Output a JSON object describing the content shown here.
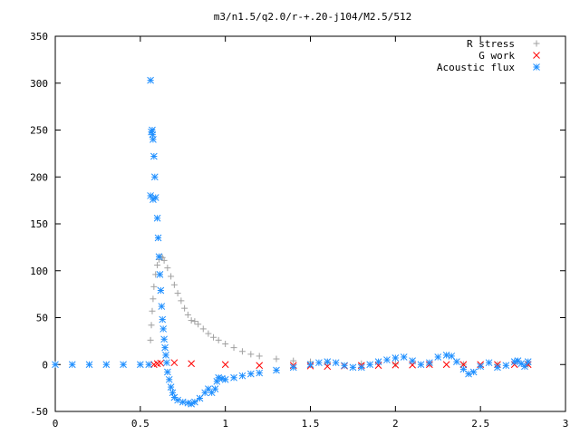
{
  "chart_data": {
    "type": "scatter",
    "title": "m3/n1.5/q2.0/r-+.20-j104/M2.5/512",
    "xlabel": "",
    "ylabel": "",
    "xlim": [
      0,
      3
    ],
    "ylim": [
      -50,
      350
    ],
    "xticks": [
      "0",
      "0.5",
      "1",
      "1.5",
      "2",
      "2.5",
      "3"
    ],
    "yticks": [
      "-50",
      "0",
      "50",
      "100",
      "150",
      "200",
      "250",
      "300",
      "350"
    ],
    "grid": false,
    "legend_position": "top-right",
    "series": [
      {
        "name": "R stress",
        "marker": "plus",
        "color": "#a0a0a0",
        "points": [
          [
            0.56,
            26
          ],
          [
            0.565,
            42
          ],
          [
            0.57,
            57
          ],
          [
            0.575,
            70
          ],
          [
            0.58,
            83
          ],
          [
            0.59,
            96
          ],
          [
            0.6,
            106
          ],
          [
            0.61,
            112
          ],
          [
            0.62,
            115
          ],
          [
            0.63,
            114
          ],
          [
            0.64,
            111
          ],
          [
            0.66,
            103
          ],
          [
            0.68,
            94
          ],
          [
            0.7,
            85
          ],
          [
            0.72,
            76
          ],
          [
            0.74,
            68
          ],
          [
            0.76,
            60
          ],
          [
            0.78,
            53
          ],
          [
            0.8,
            47
          ],
          [
            0.82,
            46
          ],
          [
            0.84,
            43
          ],
          [
            0.87,
            38
          ],
          [
            0.9,
            33
          ],
          [
            0.93,
            29
          ],
          [
            0.96,
            26
          ],
          [
            1.0,
            22
          ],
          [
            1.05,
            18
          ],
          [
            1.1,
            14
          ],
          [
            1.15,
            11
          ],
          [
            1.2,
            9
          ],
          [
            1.3,
            6
          ],
          [
            1.4,
            4
          ],
          [
            1.5,
            3
          ],
          [
            1.6,
            2
          ],
          [
            1.8,
            1
          ],
          [
            2.0,
            0.5
          ],
          [
            2.2,
            0.3
          ],
          [
            2.4,
            0.2
          ],
          [
            2.6,
            0.1
          ],
          [
            2.78,
            0
          ]
        ]
      },
      {
        "name": "G work",
        "marker": "cross",
        "color": "#ff0000",
        "points": [
          [
            0.58,
            0
          ],
          [
            0.6,
            1
          ],
          [
            0.62,
            1.5
          ],
          [
            0.7,
            2
          ],
          [
            0.8,
            1
          ],
          [
            1.0,
            0
          ],
          [
            1.2,
            -1
          ],
          [
            1.4,
            -1
          ],
          [
            1.5,
            -1.5
          ],
          [
            1.6,
            -2
          ],
          [
            1.7,
            -1.5
          ],
          [
            1.8,
            -1
          ],
          [
            1.9,
            -1
          ],
          [
            2.0,
            -0.5
          ],
          [
            2.1,
            -0.5
          ],
          [
            2.2,
            0
          ],
          [
            2.3,
            0
          ],
          [
            2.4,
            0
          ],
          [
            2.5,
            0
          ],
          [
            2.6,
            0
          ],
          [
            2.7,
            0
          ],
          [
            2.78,
            0
          ]
        ]
      },
      {
        "name": "Acoustic flux",
        "marker": "star",
        "color": "#1f8fff",
        "points": [
          [
            0,
            0
          ],
          [
            0.1,
            0
          ],
          [
            0.2,
            0
          ],
          [
            0.3,
            0
          ],
          [
            0.4,
            0
          ],
          [
            0.5,
            0
          ],
          [
            0.55,
            0
          ],
          [
            0.56,
            303
          ],
          [
            0.565,
            248
          ],
          [
            0.57,
            250
          ],
          [
            0.572,
            245
          ],
          [
            0.575,
            240
          ],
          [
            0.58,
            222
          ],
          [
            0.585,
            200
          ],
          [
            0.56,
            180
          ],
          [
            0.575,
            176
          ],
          [
            0.59,
            178
          ],
          [
            0.6,
            156
          ],
          [
            0.605,
            135
          ],
          [
            0.61,
            115
          ],
          [
            0.615,
            96
          ],
          [
            0.62,
            79
          ],
          [
            0.625,
            62
          ],
          [
            0.63,
            48
          ],
          [
            0.635,
            38
          ],
          [
            0.64,
            27
          ],
          [
            0.645,
            18
          ],
          [
            0.65,
            10
          ],
          [
            0.655,
            2
          ],
          [
            0.66,
            -8
          ],
          [
            0.67,
            -16
          ],
          [
            0.68,
            -24
          ],
          [
            0.69,
            -30
          ],
          [
            0.7,
            -35
          ],
          [
            0.72,
            -38
          ],
          [
            0.75,
            -40
          ],
          [
            0.78,
            -41
          ],
          [
            0.8,
            -42
          ],
          [
            0.82,
            -40
          ],
          [
            0.85,
            -36
          ],
          [
            0.88,
            -30
          ],
          [
            0.9,
            -26
          ],
          [
            0.92,
            -30
          ],
          [
            0.94,
            -26
          ],
          [
            0.95,
            -18
          ],
          [
            0.96,
            -14
          ],
          [
            0.98,
            -15
          ],
          [
            1.0,
            -16
          ],
          [
            1.05,
            -14
          ],
          [
            1.1,
            -12
          ],
          [
            1.15,
            -10
          ],
          [
            1.2,
            -9
          ],
          [
            1.3,
            -6
          ],
          [
            1.4,
            -3
          ],
          [
            1.5,
            0
          ],
          [
            1.55,
            2
          ],
          [
            1.6,
            3
          ],
          [
            1.65,
            2
          ],
          [
            1.7,
            -1
          ],
          [
            1.75,
            -3
          ],
          [
            1.8,
            -3
          ],
          [
            1.85,
            0
          ],
          [
            1.9,
            3
          ],
          [
            1.95,
            5
          ],
          [
            2.0,
            7
          ],
          [
            2.05,
            8
          ],
          [
            2.1,
            4
          ],
          [
            2.15,
            0
          ],
          [
            2.2,
            2
          ],
          [
            2.25,
            8
          ],
          [
            2.3,
            10
          ],
          [
            2.33,
            9
          ],
          [
            2.36,
            3
          ],
          [
            2.4,
            -5
          ],
          [
            2.43,
            -10
          ],
          [
            2.46,
            -8
          ],
          [
            2.5,
            -2
          ],
          [
            2.55,
            2
          ],
          [
            2.6,
            -3
          ],
          [
            2.65,
            -1
          ],
          [
            2.7,
            3
          ],
          [
            2.72,
            4
          ],
          [
            2.74,
            1
          ],
          [
            2.76,
            -2
          ],
          [
            2.78,
            3
          ]
        ]
      }
    ]
  }
}
